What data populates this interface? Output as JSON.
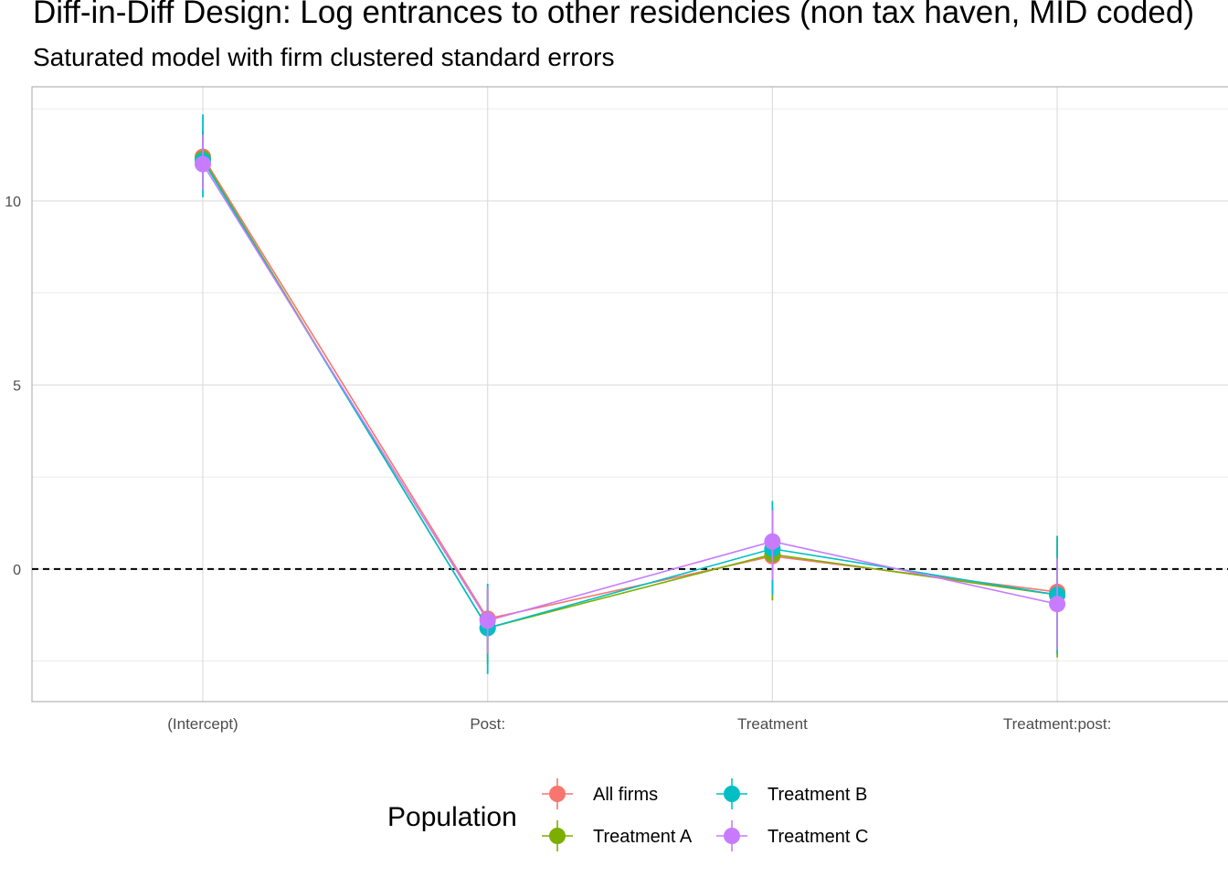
{
  "chart_data": {
    "type": "line",
    "title": "Diff-in-Diff Design: Log entrances to other residencies (non tax haven, MID coded)",
    "subtitle": "Saturated model with firm clustered standard errors",
    "xlabel": "",
    "ylabel": "",
    "categories": [
      "(Intercept)",
      "Post:",
      "Treatment",
      "Treatment:post:"
    ],
    "ylim": [
      -3.6,
      13.1
    ],
    "y_ticks": [
      0,
      5,
      10
    ],
    "y_tick_labels": [
      "0",
      "5",
      "10"
    ],
    "reference_line": {
      "y": 0,
      "style": "dashed"
    },
    "grid": true,
    "legend": {
      "title": "Population",
      "position": "bottom"
    },
    "series": [
      {
        "name": "All firms",
        "color": "#F8766D",
        "values": [
          11.2,
          -1.35,
          0.35,
          -0.62
        ],
        "lower": [
          10.5,
          -2.3,
          -0.7,
          -2.1
        ],
        "upper": [
          11.9,
          -0.5,
          1.4,
          0.8
        ]
      },
      {
        "name": "Treatment A",
        "color": "#7CAE00",
        "values": [
          11.15,
          -1.6,
          0.4,
          -0.7
        ],
        "lower": [
          10.4,
          -2.6,
          -0.85,
          -2.4
        ],
        "upper": [
          11.9,
          -0.6,
          1.7,
          0.9
        ]
      },
      {
        "name": "Treatment B",
        "color": "#00BFC4",
        "values": [
          11.1,
          -1.6,
          0.55,
          -0.7
        ],
        "lower": [
          10.1,
          -2.85,
          -0.7,
          -2.3
        ],
        "upper": [
          12.35,
          -0.4,
          1.85,
          0.9
        ]
      },
      {
        "name": "Treatment C",
        "color": "#C77CFF",
        "values": [
          11.0,
          -1.4,
          0.75,
          -0.95
        ],
        "lower": [
          10.3,
          -2.3,
          -0.3,
          -2.2
        ],
        "upper": [
          11.8,
          -0.5,
          1.6,
          0.3
        ]
      }
    ]
  }
}
